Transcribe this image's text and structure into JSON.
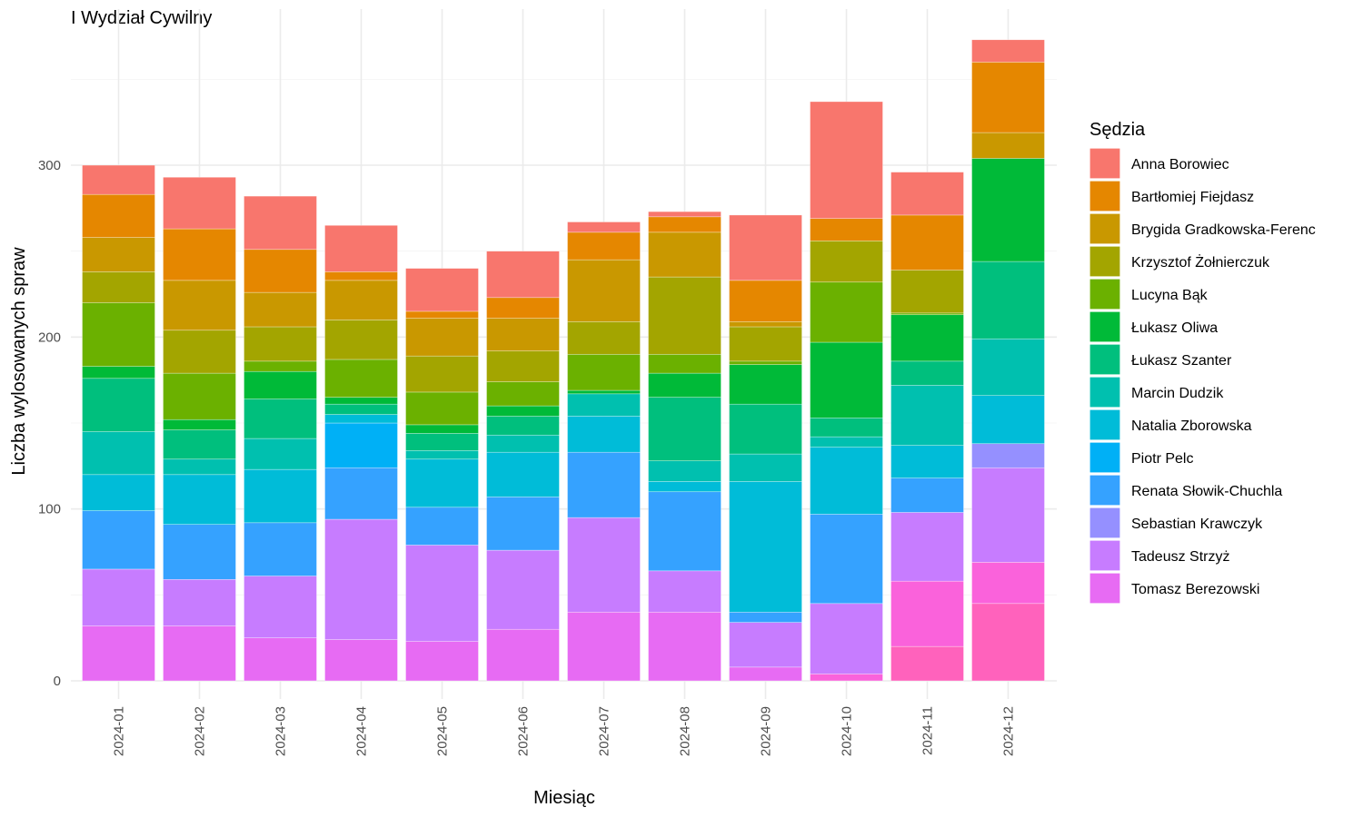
{
  "chart_data": {
    "type": "bar",
    "stacked": true,
    "title": "I Wydział Cywilny",
    "xlabel": "Miesiąc",
    "ylabel": "Liczba wylosowanych spraw",
    "ylim": [
      0,
      380
    ],
    "yticks": [
      0,
      100,
      200,
      300
    ],
    "grid": true,
    "legend_title": "Sędzia",
    "legend_position": "right",
    "categories": [
      "2024-01",
      "2024-02",
      "2024-03",
      "2024-04",
      "2024-05",
      "2024-06",
      "2024-07",
      "2024-08",
      "2024-09",
      "2024-10",
      "2024-11",
      "2024-12"
    ],
    "series": [
      {
        "name": "Anna Borowiec",
        "color": "#F8766D",
        "values": [
          17,
          30,
          31,
          27,
          25,
          27,
          6,
          3,
          38,
          68,
          25,
          13
        ]
      },
      {
        "name": "Bartłomiej Fiejdasz",
        "color": "#E58700",
        "values": [
          25,
          30,
          25,
          5,
          4,
          12,
          16,
          9,
          24,
          13,
          32,
          41
        ]
      },
      {
        "name": "Brygida Gradkowska-Ferenc",
        "color": "#C99800",
        "values": [
          20,
          29,
          20,
          23,
          22,
          19,
          36,
          26,
          3,
          0,
          0,
          15
        ]
      },
      {
        "name": "Krzysztof Żołnierczuk",
        "color": "#A3A500",
        "values": [
          18,
          25,
          20,
          23,
          21,
          18,
          19,
          45,
          20,
          24,
          25,
          0
        ]
      },
      {
        "name": "Lucyna Bąk",
        "color": "#6BB100",
        "values": [
          37,
          27,
          6,
          22,
          19,
          14,
          21,
          11,
          2,
          35,
          1,
          0
        ]
      },
      {
        "name": "Łukasz Oliwa",
        "color": "#00BA38",
        "values": [
          7,
          6,
          16,
          4,
          5,
          6,
          2,
          14,
          23,
          44,
          27,
          60
        ]
      },
      {
        "name": "Łukasz Szanter",
        "color": "#00BF7D",
        "values": [
          31,
          17,
          23,
          6,
          10,
          11,
          0,
          37,
          29,
          11,
          14,
          45
        ]
      },
      {
        "name": "Marcin Dudzik",
        "color": "#00C0AF",
        "values": [
          25,
          9,
          18,
          0,
          5,
          10,
          13,
          12,
          16,
          6,
          35,
          33
        ]
      },
      {
        "name": "Natalia Zborowska",
        "color": "#00BCD8",
        "values": [
          21,
          29,
          31,
          5,
          28,
          26,
          21,
          6,
          76,
          39,
          19,
          28
        ]
      },
      {
        "name": "Piotr Pelc",
        "color": "#00B0F6",
        "values": [
          0,
          0,
          0,
          26,
          0,
          0,
          0,
          0,
          0,
          0,
          0,
          0
        ]
      },
      {
        "name": "Renata Słowik-Chuchla",
        "color": "#35A2FF",
        "values": [
          34,
          32,
          31,
          30,
          22,
          31,
          38,
          46,
          6,
          52,
          20,
          0
        ]
      },
      {
        "name": "Sebastian Krawczyk",
        "color": "#9590FF",
        "values": [
          0,
          0,
          0,
          0,
          0,
          0,
          0,
          0,
          0,
          0,
          0,
          14
        ]
      },
      {
        "name": "Tadeusz Strzyż",
        "color": "#C77CFF",
        "values": [
          33,
          27,
          36,
          70,
          56,
          46,
          55,
          24,
          26,
          41,
          40,
          55
        ]
      },
      {
        "name": "Tomasz Berezowski",
        "color": "#E76BF3",
        "values": [
          32,
          32,
          25,
          24,
          23,
          30,
          40,
          40,
          8,
          0,
          0,
          0
        ]
      },
      {
        "name": "",
        "color": "#FA62DB",
        "values": [
          0,
          0,
          0,
          0,
          0,
          0,
          0,
          0,
          0,
          4,
          38,
          24
        ]
      },
      {
        "name": "",
        "color": "#FF62BC",
        "values": [
          0,
          0,
          0,
          0,
          0,
          0,
          0,
          0,
          0,
          0,
          20,
          45
        ]
      }
    ]
  }
}
